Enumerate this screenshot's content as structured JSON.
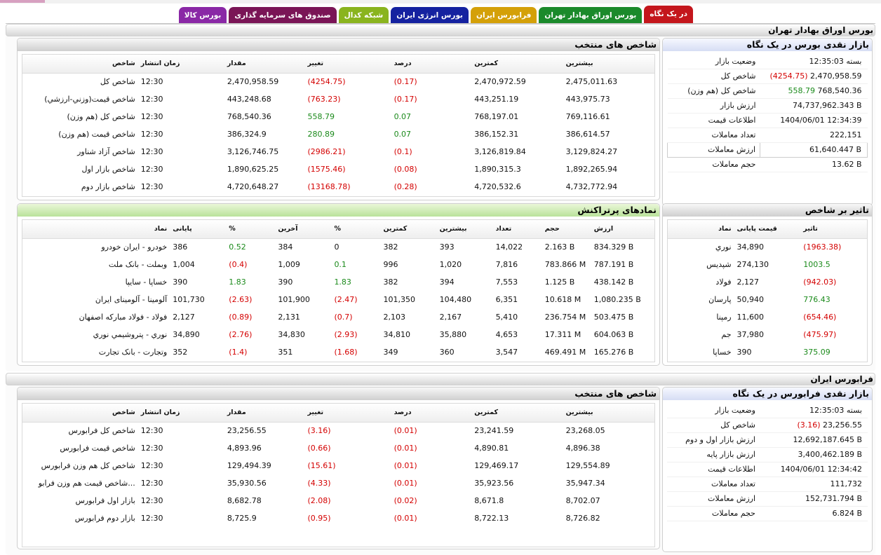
{
  "tabs": [
    {
      "label": "در یک نگاه",
      "color": "#c4161c",
      "active": true
    },
    {
      "label": "بورس اوراق بهادار تهران",
      "color": "#1b8a2b"
    },
    {
      "label": "فرابورس ایران",
      "color": "#d4a008"
    },
    {
      "label": "بورس انرژی ایران",
      "color": "#1522a0"
    },
    {
      "label": "شبکه کدال",
      "color": "#8ab41e"
    },
    {
      "label": "صندوق های سرمایه گذاری",
      "color": "#7a1556"
    },
    {
      "label": "بورس کالا",
      "color": "#8a28a6"
    }
  ],
  "tse": {
    "section_title": "بورس اوراق بهادار تهران",
    "glance": {
      "title": "بازار نقدی بورس در یک نگاه",
      "rows": [
        {
          "k": "وضعیت بازار",
          "v": "بسته 12:35:03"
        },
        {
          "k": "شاخص کل",
          "v": "2,470,958.59",
          "c": "(4254.75)",
          "cc": "neg"
        },
        {
          "k": "شاخص کل (هم وزن)",
          "v": "768,540.36",
          "c": "558.79",
          "cc": "pos"
        },
        {
          "k": "ارزش بازار",
          "v": "74,737,962.343 B"
        },
        {
          "k": "اطلاعات قیمت",
          "v": "1404/06/01 12:34:39"
        },
        {
          "k": "تعداد معاملات",
          "v": "222,151"
        },
        {
          "k": "ارزش معاملات",
          "v": "61,640.447 B",
          "boxed": true
        },
        {
          "k": "حجم معاملات",
          "v": "13.62 B"
        }
      ]
    },
    "indices": {
      "title": "شاخص های منتخب",
      "headers": [
        "شاخص",
        "زمان انتشار",
        "مقدار",
        "تغییر",
        "درصد",
        "کمترین",
        "بیشترین"
      ],
      "rows": [
        [
          "شاخص کل",
          "12:30",
          "2,470,958.59",
          "(4254.75)",
          "(0.17)",
          "2,470,972.59",
          "2,475,011.63"
        ],
        [
          "شاخص قيمت(وزني-ارزشي)",
          "12:30",
          "443,248.68",
          "(763.23)",
          "(0.17)",
          "443,251.19",
          "443,975.73"
        ],
        [
          "شاخص کل (هم وزن)",
          "12:30",
          "768,540.36",
          "558.79",
          "0.07",
          "768,197.01",
          "769,116.61"
        ],
        [
          "شاخص قیمت (هم وزن)",
          "12:30",
          "386,324.9",
          "280.89",
          "0.07",
          "386,152.31",
          "386,614.57"
        ],
        [
          "شاخص آزاد شناور",
          "12:30",
          "3,126,746.75",
          "(2986.21)",
          "(0.1)",
          "3,126,819.84",
          "3,129,824.27"
        ],
        [
          "شاخص بازار اول",
          "12:30",
          "1,890,625.25",
          "(1575.46)",
          "(0.08)",
          "1,890,315.3",
          "1,892,265.94"
        ],
        [
          "شاخص بازار دوم",
          "12:30",
          "4,720,648.27",
          "(13168.78)",
          "(0.28)",
          "4,720,532.6",
          "4,732,772.94"
        ]
      ]
    },
    "impact": {
      "title": "تاثیر بر شاخص",
      "headers": [
        "نماد",
        "قیمت پایانی",
        "تاثیر"
      ],
      "rows": [
        [
          "نوري",
          "34,890",
          "(1963.38)"
        ],
        [
          "شپديس",
          "274,130",
          "1003.5"
        ],
        [
          "فولاد",
          "2,127",
          "(942.03)"
        ],
        [
          "پارسان",
          "50,940",
          "776.43"
        ],
        [
          "رمپنا",
          "11,600",
          "(654.46)"
        ],
        [
          "جم",
          "37,980",
          "(475.97)"
        ],
        [
          "خساپا",
          "390",
          "375.09"
        ]
      ]
    },
    "active": {
      "title": "نمادهای پرتراکنش",
      "headers": [
        "نماد",
        "پایانی",
        "%",
        "آخرین",
        "%",
        "کمترین",
        "بیشترین",
        "تعداد",
        "حجم",
        "ارزش"
      ],
      "rows": [
        [
          "خودرو - ايران خودرو",
          "386",
          "0.52",
          "384",
          "0",
          "382",
          "393",
          "14,022",
          "2.163 B",
          "834.329 B"
        ],
        [
          "وبملت - بانک ملت",
          "1,004",
          "(0.4)",
          "1,009",
          "0.1",
          "996",
          "1,020",
          "7,816",
          "783.866 M",
          "787.191 B"
        ],
        [
          "خساپا - سايپا",
          "390",
          "1.83",
          "390",
          "1.83",
          "382",
          "394",
          "7,553",
          "1.125 B",
          "438.142 B"
        ],
        [
          "فولاد - فولاد مبارکه اصفهان",
          "2,127",
          "(0.89)",
          "2,131",
          "(0.7)",
          "2,103",
          "2,167",
          "5,410",
          "236.754 M",
          "503.475 B"
        ],
        [
          "نوري - پتروشيمي نوري",
          "34,890",
          "(2.76)",
          "34,830",
          "(2.93)",
          "34,810",
          "35,880",
          "4,653",
          "17.311 M",
          "604.063 B"
        ],
        [
          "وتجارت - بانک تجارت",
          "352",
          "(1.4)",
          "351",
          "(1.68)",
          "349",
          "360",
          "3,547",
          "469.491 M",
          "165.276 B"
        ]
      ],
      "row_alumina": [
        "آلومينا - آلومينای ايران",
        "101,730",
        "(2.63)",
        "101,900",
        "(2.47)",
        "101,350",
        "104,480",
        "6,351",
        "10.618 M",
        "1,080.235 B"
      ]
    }
  },
  "ifb": {
    "section_title": "فرابورس ایران",
    "glance": {
      "title": "بازار نقدی فرابورس در یک نگاه",
      "rows": [
        {
          "k": "وضعیت بازار",
          "v": "بسته 12:35:03"
        },
        {
          "k": "شاخص کل",
          "v": "23,256.55",
          "c": "(3.16)",
          "cc": "neg"
        },
        {
          "k": "ارزش بازار اول و دوم",
          "v": "12,692,187.645 B"
        },
        {
          "k": "ارزش بازار پایه",
          "v": "3,400,462.189 B"
        },
        {
          "k": "اطلاعات قیمت",
          "v": "1404/06/01 12:34:42"
        },
        {
          "k": "تعداد معاملات",
          "v": "111,732"
        },
        {
          "k": "ارزش معاملات",
          "v": "152,731.794 B"
        },
        {
          "k": "حجم معاملات",
          "v": "6.824 B"
        }
      ]
    },
    "indices": {
      "title": "شاخص های منتخب",
      "headers": [
        "شاخص",
        "زمان انتشار",
        "مقدار",
        "تغییر",
        "درصد",
        "کمترین",
        "بیشترین"
      ],
      "rows": [
        [
          "شاخص کل فرابورس",
          "12:30",
          "23,256.55",
          "(3.16)",
          "(0.01)",
          "23,241.59",
          "23,268.05"
        ],
        [
          "شاخص قيمت فرابورس",
          "12:30",
          "4,893.96",
          "(0.66)",
          "(0.01)",
          "4,890.81",
          "4,896.38"
        ],
        [
          "شاخص کل هم وزن فرابورس",
          "12:30",
          "129,494.39",
          "(15.61)",
          "(0.01)",
          "129,469.17",
          "129,554.89"
        ],
        [
          "شاخص قیمت هم وزن فرابو...",
          "12:30",
          "35,930.56",
          "(4.33)",
          "(0.01)",
          "35,923.56",
          "35,947.34"
        ],
        [
          "بازار اول فرابورس",
          "12:30",
          "8,682.78",
          "(2.08)",
          "(0.02)",
          "8,671.8",
          "8,702.07"
        ],
        [
          "بازار دوم فرابورس",
          "12:30",
          "8,725.9",
          "(0.95)",
          "(0.01)",
          "8,722.13",
          "8,726.82"
        ]
      ]
    }
  }
}
